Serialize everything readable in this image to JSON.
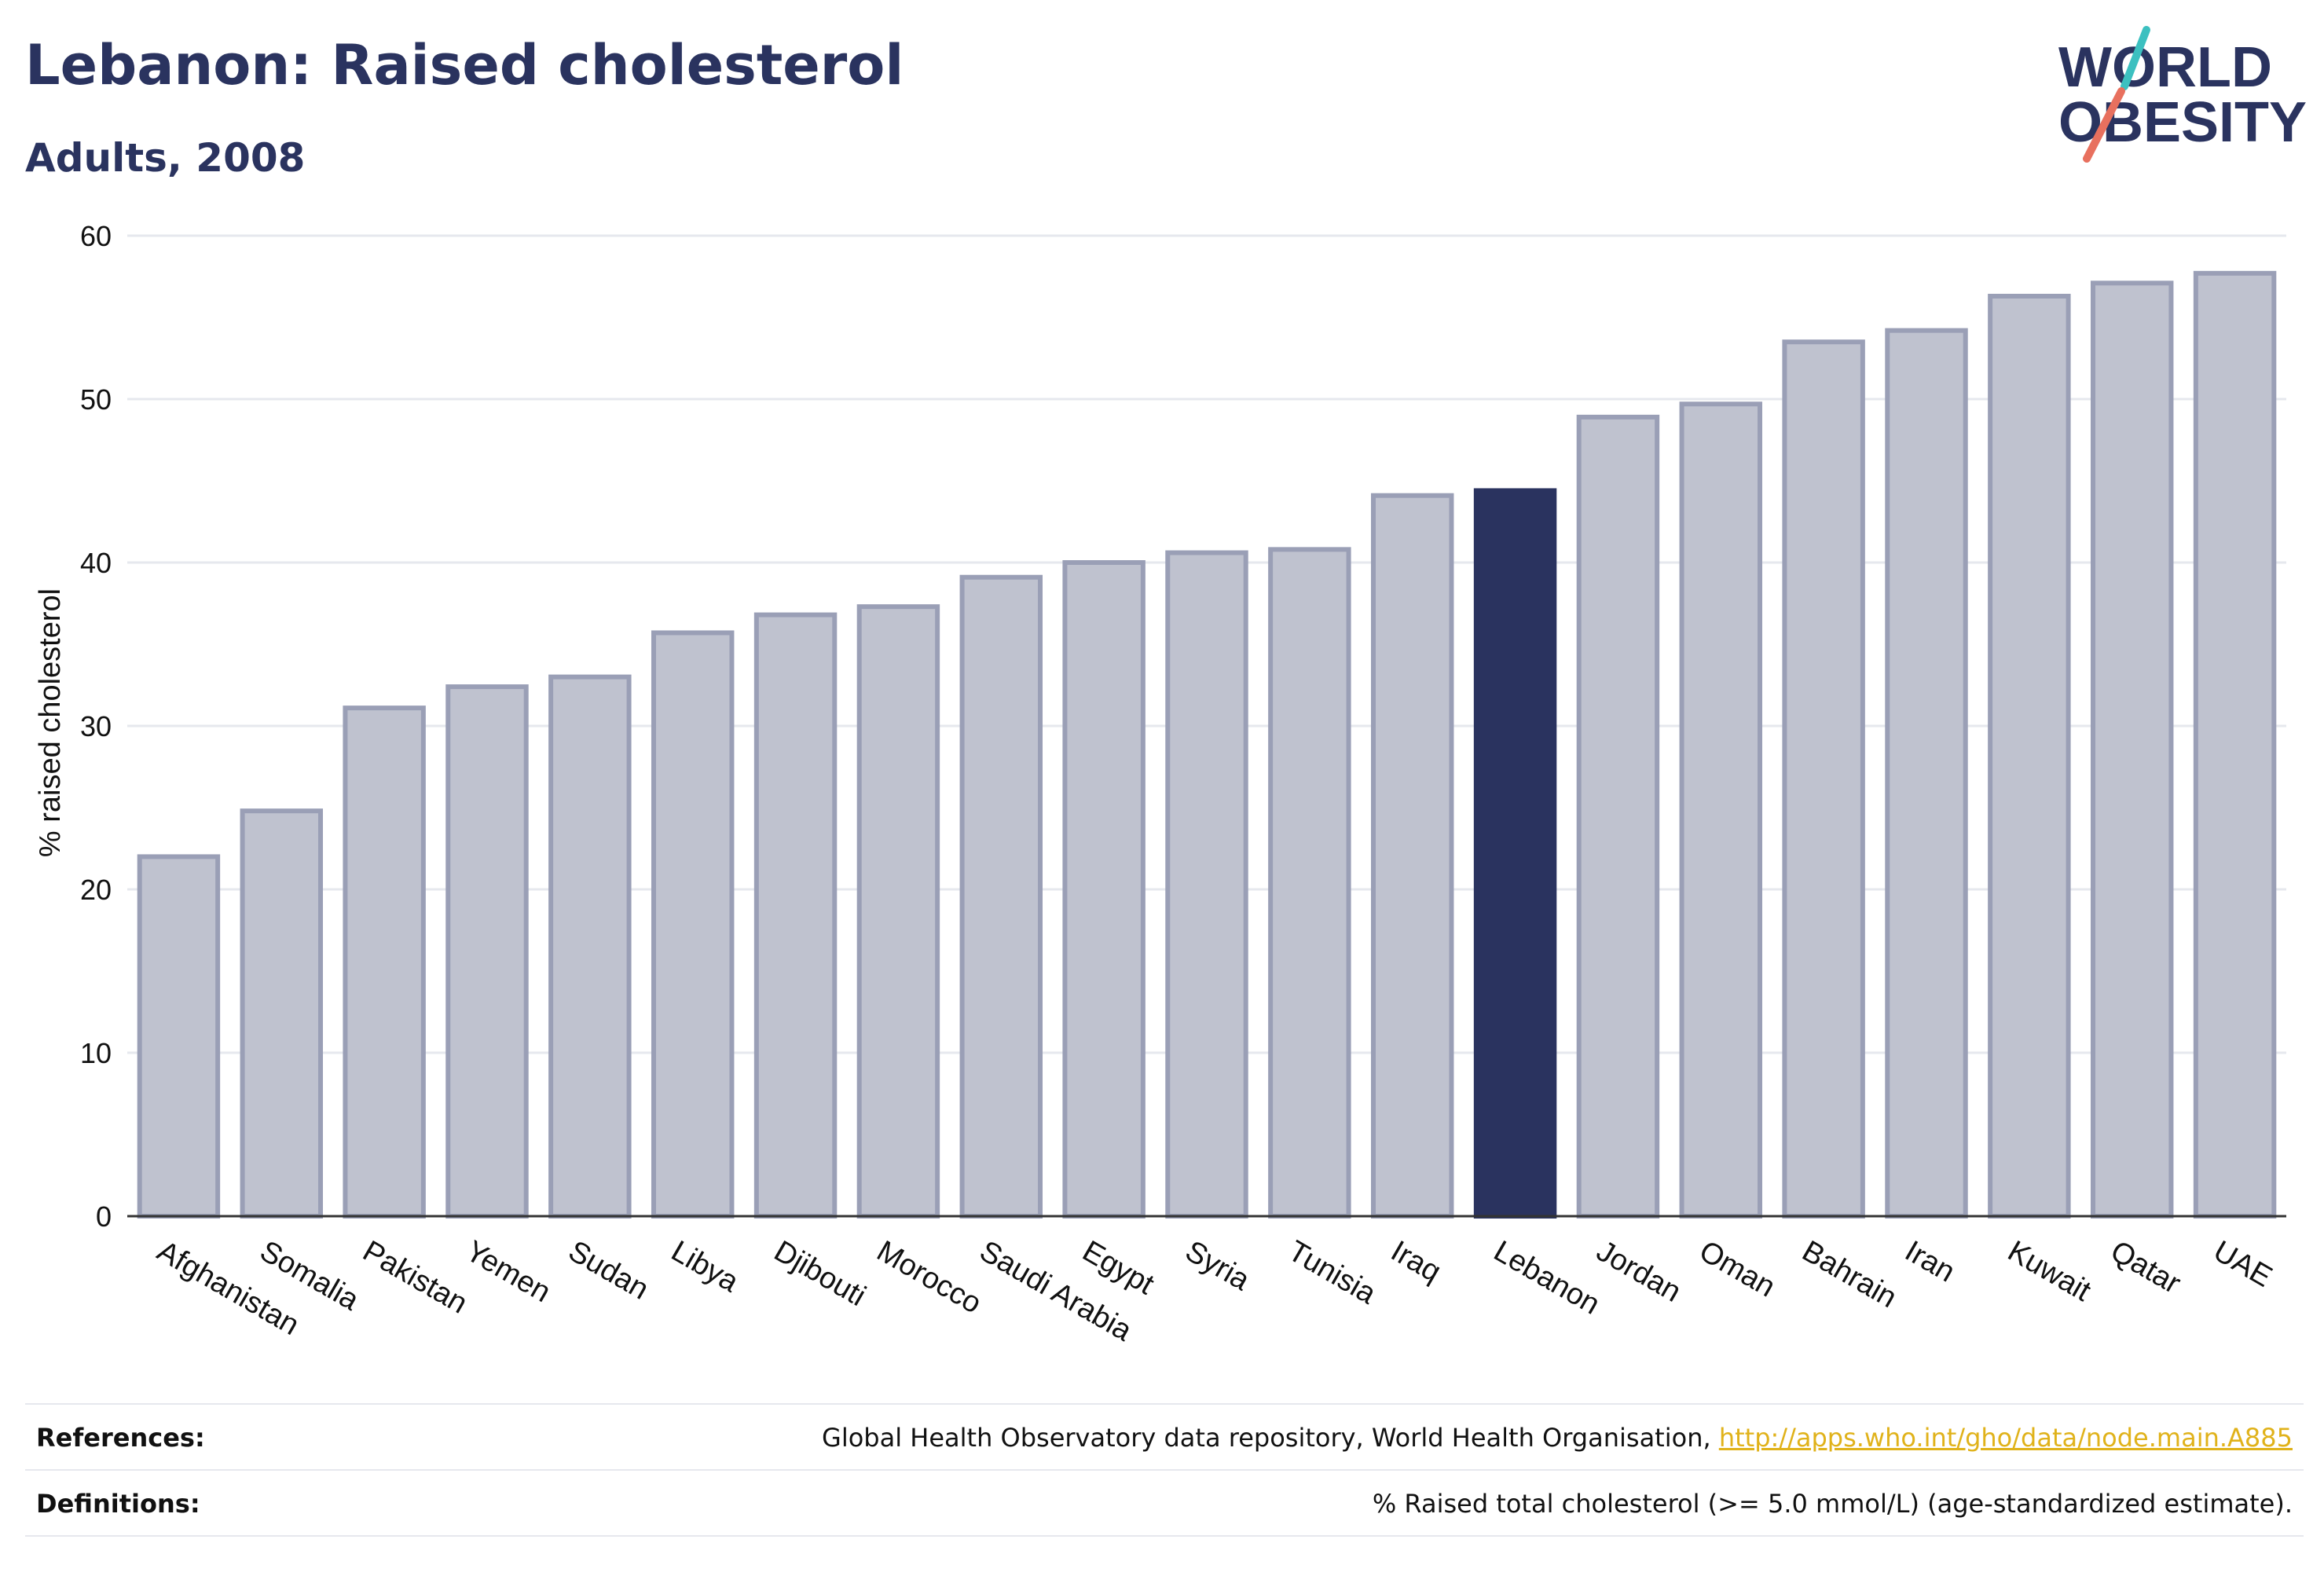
{
  "header": {
    "title": "Lebanon: Raised cholesterol",
    "subtitle": "Adults, 2008"
  },
  "logo": {
    "line1": "WORLD",
    "line2": "OBESITY"
  },
  "colors": {
    "highlight": "#2a335f",
    "bar_fill": "#bfc2cf",
    "bar_stroke": "#9a9fb6",
    "grid": "#e6e8ee",
    "link": "#e0b21a",
    "logo_teal": "#3cc0c0",
    "logo_coral": "#e8705e"
  },
  "chart_data": {
    "type": "bar",
    "title": "Lebanon: Raised cholesterol",
    "subtitle": "Adults, 2008",
    "ylabel": "% raised cholesterol",
    "xlabel": "",
    "ylim": [
      0,
      60
    ],
    "yticks": [
      0,
      10,
      20,
      30,
      40,
      50,
      60
    ],
    "grid": true,
    "highlight_category": "Lebanon",
    "categories": [
      "Afghanistan",
      "Somalia",
      "Pakistan",
      "Yemen",
      "Sudan",
      "Libya",
      "Djibouti",
      "Morocco",
      "Saudi Arabia",
      "Egypt",
      "Syria",
      "Tunisia",
      "Iraq",
      "Lebanon",
      "Jordan",
      "Oman",
      "Bahrain",
      "Iran",
      "Kuwait",
      "Qatar",
      "UAE"
    ],
    "values": [
      22.0,
      24.8,
      31.1,
      32.4,
      33.0,
      35.7,
      36.8,
      37.3,
      39.1,
      40.0,
      40.6,
      40.8,
      44.1,
      44.4,
      48.9,
      49.7,
      53.5,
      54.2,
      56.3,
      57.1,
      57.7
    ]
  },
  "footer": {
    "references_label": "References:",
    "references_text": "Global Health Observatory data repository, World Health Organisation,",
    "references_link": "http://apps.who.int/gho/data/node.main.A885",
    "definitions_label": "Definitions:",
    "definitions_text": "% Raised total cholesterol (>= 5.0 mmol/L) (age-standardized estimate)."
  }
}
